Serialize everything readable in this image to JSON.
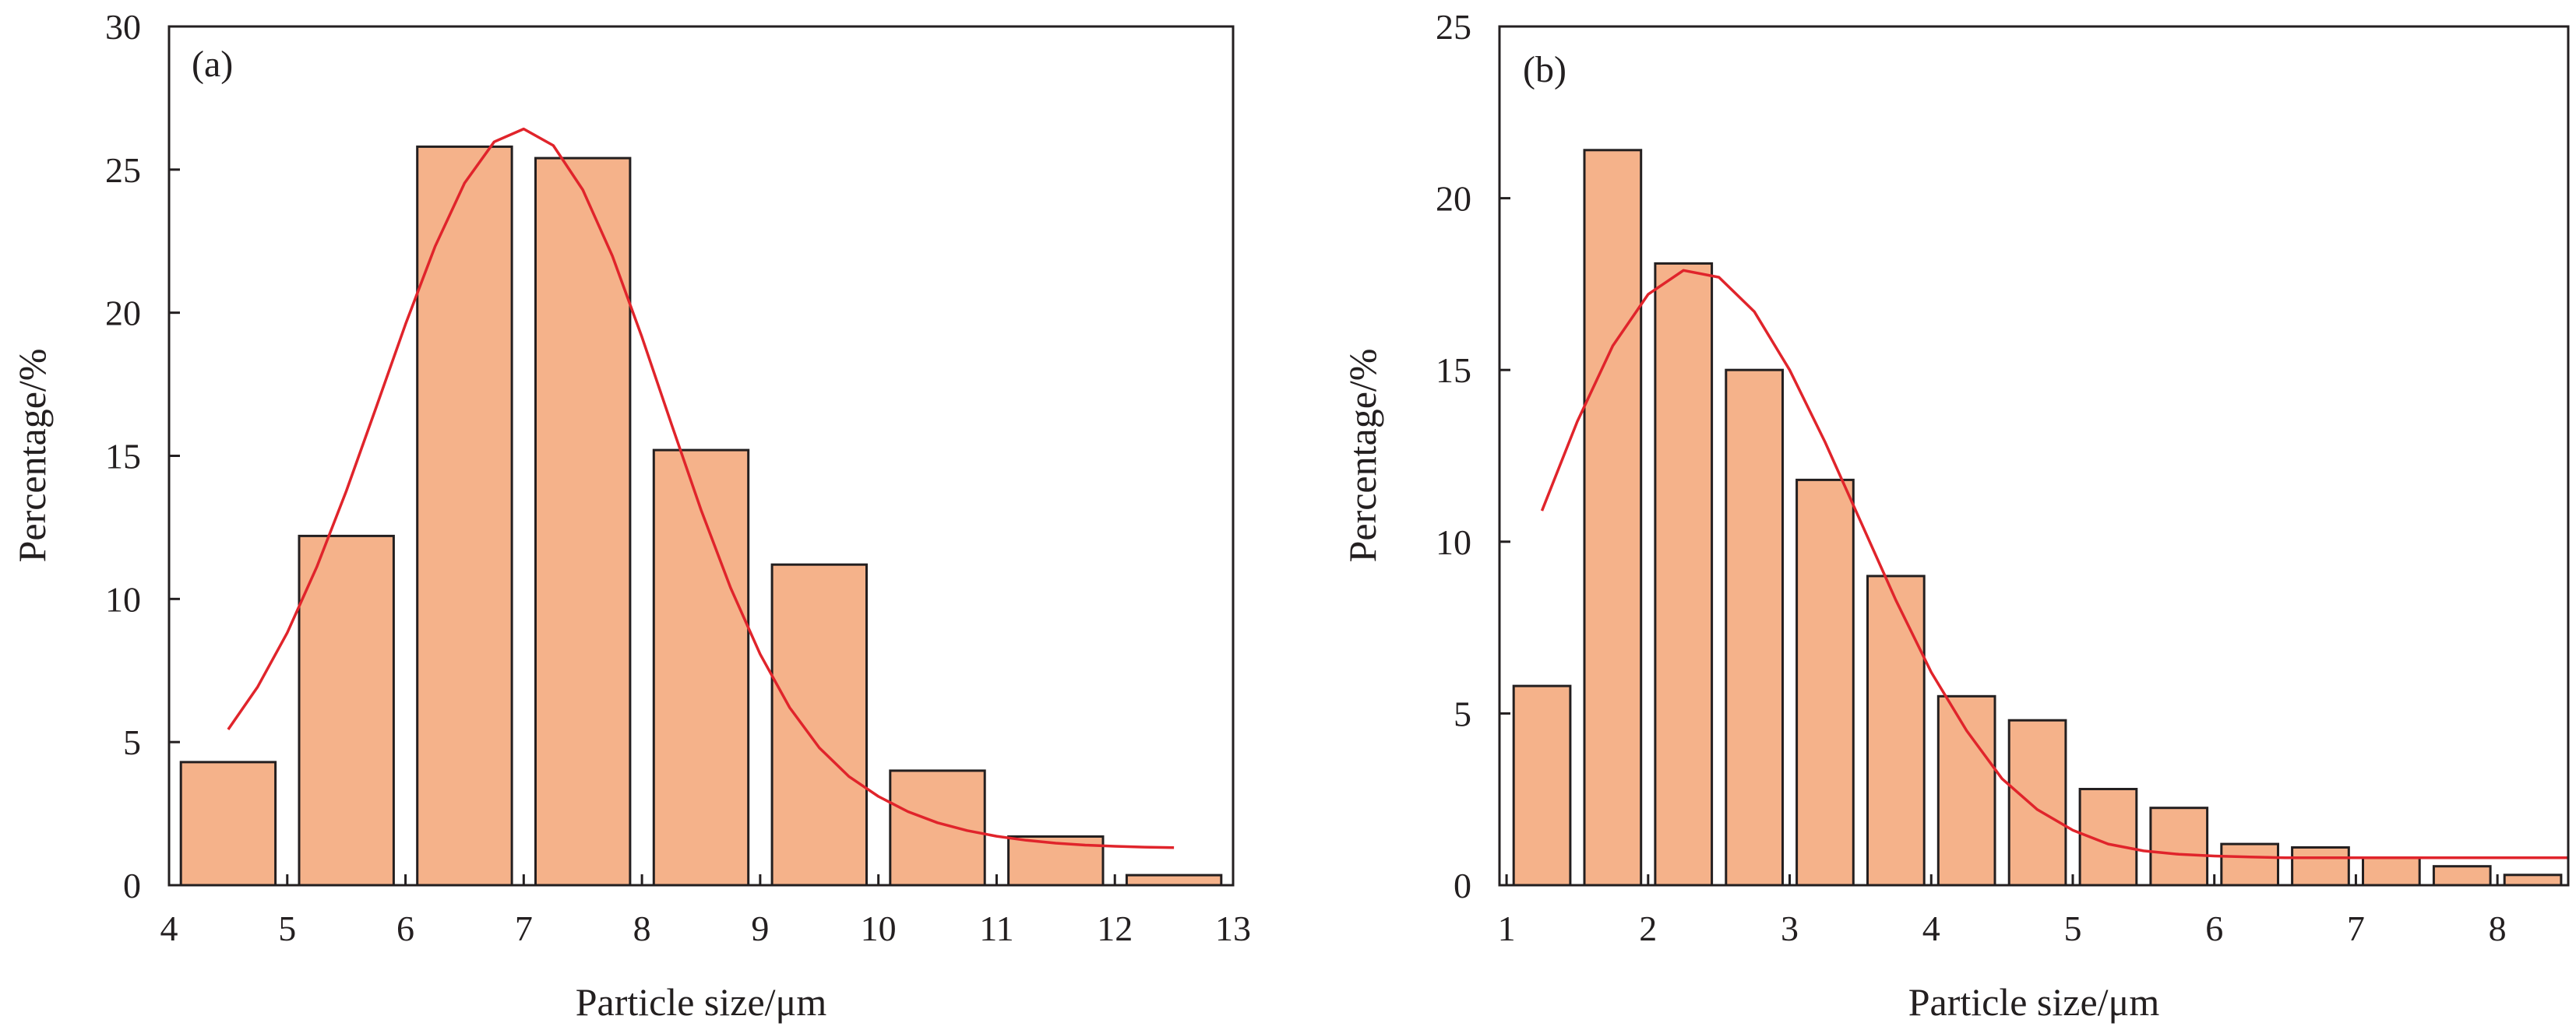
{
  "colors": {
    "bar_fill": "#f5b28a",
    "bar_stroke": "#231f20",
    "fit_curve": "#e0242b",
    "axis": "#231f20",
    "background": "#ffffff"
  },
  "chart_data": [
    {
      "type": "bar",
      "panel_label": "(a)",
      "xlabel": "Particle size/μm",
      "ylabel": "Percentage/%",
      "xlim": [
        4,
        13
      ],
      "ylim": [
        0,
        30
      ],
      "xticks": [
        "4",
        "5",
        "6",
        "7",
        "8",
        "9",
        "10",
        "11",
        "12",
        "13"
      ],
      "yticks": [
        "0",
        "5",
        "10",
        "15",
        "20",
        "25",
        "30"
      ],
      "bin_width": 0.8,
      "bins": [
        {
          "x": 4.5,
          "value": 4.3
        },
        {
          "x": 5.5,
          "value": 12.2
        },
        {
          "x": 6.5,
          "value": 25.8
        },
        {
          "x": 7.5,
          "value": 25.4
        },
        {
          "x": 8.5,
          "value": 15.2
        },
        {
          "x": 9.5,
          "value": 11.2
        },
        {
          "x": 10.5,
          "value": 4.0
        },
        {
          "x": 11.5,
          "value": 1.7
        },
        {
          "x": 12.5,
          "value": 0.35
        }
      ],
      "fit_curve": {
        "x": [
          4.5,
          4.75,
          5.0,
          5.25,
          5.5,
          5.75,
          6.0,
          6.25,
          6.5,
          6.75,
          7.0,
          7.25,
          7.5,
          7.75,
          8.0,
          8.25,
          8.5,
          8.75,
          9.0,
          9.25,
          9.5,
          9.75,
          10.0,
          10.25,
          10.5,
          10.75,
          11.0,
          11.25,
          11.5,
          11.75,
          12.0,
          12.25,
          12.5
        ],
        "y": [
          5.44,
          6.93,
          8.82,
          11.12,
          13.78,
          16.67,
          19.6,
          22.31,
          24.53,
          25.97,
          26.42,
          25.84,
          24.29,
          21.98,
          19.15,
          16.1,
          13.11,
          10.39,
          8.07,
          6.2,
          4.8,
          3.8,
          3.1,
          2.57,
          2.18,
          1.91,
          1.71,
          1.57,
          1.47,
          1.4,
          1.36,
          1.33,
          1.31
        ]
      }
    },
    {
      "type": "bar",
      "panel_label": "(b)",
      "xlabel": "Particle size/μm",
      "ylabel": "Percentage/%",
      "xlim": [
        0.95,
        8.5
      ],
      "ylim": [
        0,
        25
      ],
      "xticks": [
        "1",
        "2",
        "3",
        "4",
        "5",
        "6",
        "7",
        "8"
      ],
      "yticks": [
        "0",
        "5",
        "10",
        "15",
        "20",
        "25"
      ],
      "bin_width": 0.4,
      "bins": [
        {
          "x": 1.25,
          "value": 5.8
        },
        {
          "x": 1.75,
          "value": 21.4
        },
        {
          "x": 2.25,
          "value": 18.1
        },
        {
          "x": 2.75,
          "value": 15.0
        },
        {
          "x": 3.25,
          "value": 11.8
        },
        {
          "x": 3.75,
          "value": 9.0
        },
        {
          "x": 4.25,
          "value": 5.5
        },
        {
          "x": 4.75,
          "value": 4.8
        },
        {
          "x": 5.25,
          "value": 2.8
        },
        {
          "x": 5.75,
          "value": 2.25
        },
        {
          "x": 6.25,
          "value": 1.2
        },
        {
          "x": 6.75,
          "value": 1.1
        },
        {
          "x": 7.25,
          "value": 0.8
        },
        {
          "x": 7.75,
          "value": 0.55
        },
        {
          "x": 8.25,
          "value": 0.3
        }
      ],
      "fit_curve": {
        "x": [
          1.25,
          1.5,
          1.75,
          2.0,
          2.25,
          2.5,
          2.75,
          3.0,
          3.25,
          3.5,
          3.75,
          4.0,
          4.25,
          4.5,
          4.75,
          5.0,
          5.25,
          5.5,
          5.75,
          6.0,
          6.25,
          6.5,
          6.75,
          7.0,
          7.25,
          7.5,
          7.75,
          8.0,
          8.25,
          8.5
        ],
        "y": [
          10.9,
          13.5,
          15.7,
          17.2,
          17.9,
          17.7,
          16.7,
          15.0,
          12.9,
          10.6,
          8.3,
          6.2,
          4.5,
          3.1,
          2.2,
          1.6,
          1.2,
          1.0,
          0.9,
          0.85,
          0.82,
          0.8,
          0.8,
          0.8,
          0.8,
          0.8,
          0.8,
          0.8,
          0.8,
          0.8
        ]
      }
    }
  ]
}
